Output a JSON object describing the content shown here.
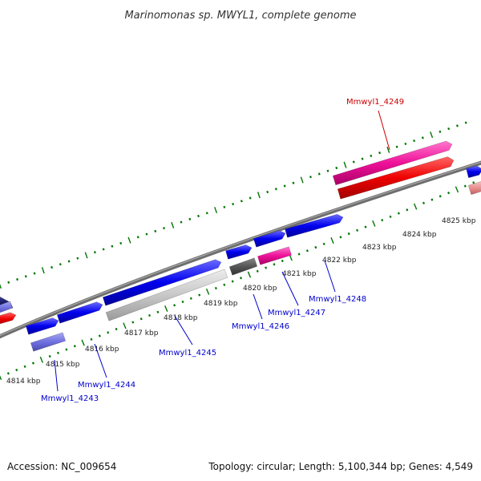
{
  "title": "Marinomonas sp. MWYL1, complete genome",
  "footer": {
    "accession": "Accession: NC_009654",
    "summary": "Topology: circular; Length: 5,100,344 bp; Genes: 4,549"
  },
  "colors": {
    "blue": "#0000ee",
    "blue_light": "#7070e0",
    "grey_light": "#c8c8c8",
    "grey_dark": "#555555",
    "magenta": "#ee1199",
    "red": "#ee0000",
    "pink_light": "#e89090",
    "backbone": "#808080",
    "tick_green": "#007700",
    "label_blue": "#0000cc",
    "label_red": "#cc0000"
  },
  "ticks": [
    {
      "label": "4814 kbp"
    },
    {
      "label": "4815 kbp"
    },
    {
      "label": "4816 kbp"
    },
    {
      "label": "4817 kbp"
    },
    {
      "label": "4818 kbp"
    },
    {
      "label": "4819 kbp"
    },
    {
      "label": "4820 kbp"
    },
    {
      "label": "4821 kbp"
    },
    {
      "label": "4822 kbp"
    },
    {
      "label": "4823 kbp"
    },
    {
      "label": "4824 kbp"
    },
    {
      "label": "4825 kbp"
    }
  ],
  "gene_labels": [
    {
      "label": "Mmwyl1_4243",
      "color": "blue"
    },
    {
      "label": "Mmwyl1_4244",
      "color": "blue"
    },
    {
      "label": "Mmwyl1_4245",
      "color": "blue"
    },
    {
      "label": "Mmwyl1_4246",
      "color": "blue"
    },
    {
      "label": "Mmwyl1_4247",
      "color": "blue"
    },
    {
      "label": "Mmwyl1_4248",
      "color": "blue"
    },
    {
      "label": "Mmwyl1_4249",
      "color": "red"
    }
  ]
}
